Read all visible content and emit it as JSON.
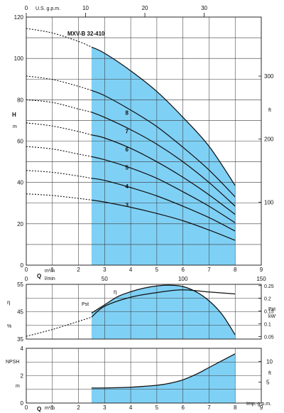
{
  "chart_data": [
    {
      "type": "line",
      "panel": "head",
      "title": "MXV-B 32-410",
      "ylabel": "H",
      "ylabel_unit": "m",
      "y_right_unit": "ft",
      "top_axis_label": "U.S. g.p.m.",
      "x_unit_top": "m³/h",
      "x_unit_bottom": "l/min",
      "xlabel": "Q",
      "ylim": [
        0,
        120
      ],
      "xlim": [
        0,
        9
      ],
      "x_ticks": [
        "0",
        "1",
        "2",
        "3",
        "4",
        "5",
        "6",
        "7",
        "8",
        "9"
      ],
      "y_ticks": [
        "0",
        "20",
        "40",
        "60",
        "80",
        "100",
        "120"
      ],
      "top_ticks": [
        "0",
        "10",
        "20",
        "30"
      ],
      "right_ticks": [
        "100",
        "200",
        "300"
      ],
      "lpm_ticks": [
        "0",
        "50",
        "100",
        "150"
      ],
      "operating_range": [
        2.5,
        8
      ],
      "series": [
        {
          "name": "8",
          "x": [
            0,
            1,
            2,
            2.5,
            3,
            4,
            5,
            6,
            7,
            8
          ],
          "values": [
            91.5,
            89.8,
            86.5,
            84.5,
            82,
            75,
            67,
            57,
            46,
            33
          ]
        },
        {
          "name": "7",
          "x": [
            0,
            1,
            2,
            2.5,
            3,
            4,
            5,
            6,
            7,
            8
          ],
          "values": [
            80.0,
            78.7,
            75.5,
            74,
            71.5,
            65.5,
            58.5,
            50,
            40,
            28.5
          ]
        },
        {
          "name": "6",
          "x": [
            0,
            1,
            2,
            2.5,
            3,
            4,
            5,
            6,
            7,
            8
          ],
          "values": [
            68.8,
            67.3,
            64.6,
            63,
            61.5,
            56.5,
            50,
            42.5,
            34,
            24.5
          ]
        },
        {
          "name": "5",
          "x": [
            0,
            1,
            2,
            2.5,
            3,
            4,
            5,
            6,
            7,
            8
          ],
          "values": [
            57.4,
            56.2,
            53.7,
            52.5,
            51,
            47,
            42,
            35.5,
            28.5,
            20.5
          ]
        },
        {
          "name": "4",
          "x": [
            0,
            1,
            2,
            2.5,
            3,
            4,
            5,
            6,
            7,
            8
          ],
          "values": [
            45.8,
            44.9,
            43.1,
            42,
            41,
            37.5,
            33.5,
            28.5,
            23,
            16.5
          ]
        },
        {
          "name": "3",
          "x": [
            0,
            1,
            2,
            2.5,
            3,
            4,
            5,
            6,
            7,
            8
          ],
          "values": [
            34.5,
            33.7,
            32.3,
            31.5,
            30.5,
            28,
            25,
            21.5,
            17,
            12
          ]
        },
        {
          "name": "",
          "x": [
            0,
            1,
            2,
            2.5,
            3,
            4,
            5,
            6,
            7,
            8
          ],
          "values": [
            114.5,
            112.3,
            108.2,
            105.5,
            102.5,
            94,
            84,
            71.5,
            57.5,
            38.5
          ]
        }
      ],
      "shaded_range": "blue",
      "shade_color": "#7fd0f5"
    },
    {
      "type": "line",
      "panel": "efficiency-power",
      "left_label": "η",
      "left_unit": "%",
      "right_label": "Pst",
      "right_unit": "kW",
      "ylim": [
        35,
        55
      ],
      "y_ticks": [
        "35",
        "45",
        "55"
      ],
      "right_ticks": [
        "0.05",
        "0.1",
        "0.15",
        "0.2",
        "0.25"
      ],
      "series": [
        {
          "name": "η",
          "x": [
            2.5,
            3,
            3.5,
            4,
            4.5,
            5,
            5.5,
            6,
            6.5,
            7,
            7.5,
            8
          ],
          "values": [
            44.5,
            47.5,
            50.5,
            52.3,
            53.6,
            54.4,
            54.7,
            54.2,
            52.3,
            49,
            44,
            36.5
          ]
        },
        {
          "name": "Pst",
          "x": [
            0,
            1,
            2,
            2.5,
            3,
            4,
            5,
            6,
            7,
            8
          ],
          "values": [
            36,
            38.5,
            41.5,
            43,
            47,
            50.3,
            52,
            53,
            52.2,
            51.5
          ]
        }
      ]
    },
    {
      "type": "area",
      "panel": "npsh",
      "left_label": "NPSH",
      "left_unit": "m",
      "right_unit": "ft",
      "xlabel": "Q",
      "x_unit": "m³/h",
      "corner_unit": "Imp. g.p.m.",
      "ylim": [
        0,
        4
      ],
      "y_ticks": [
        "0",
        "2",
        "4"
      ],
      "right_ticks": [
        "5",
        "10"
      ],
      "x_ticks": [
        "0",
        "1",
        "2",
        "3",
        "4",
        "5",
        "6",
        "7",
        "8",
        "9"
      ],
      "series": [
        {
          "name": "NPSH",
          "x": [
            2.5,
            3,
            4,
            5,
            5.5,
            6,
            6.5,
            7,
            7.5,
            8
          ],
          "values": [
            1.1,
            1.1,
            1.16,
            1.3,
            1.45,
            1.7,
            2.1,
            2.6,
            3.1,
            3.6
          ]
        }
      ]
    }
  ]
}
